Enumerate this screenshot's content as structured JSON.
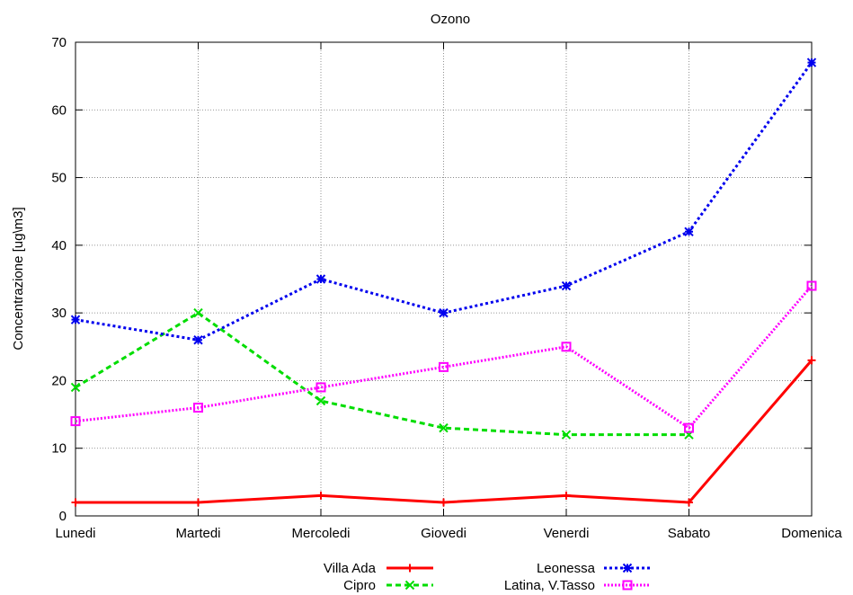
{
  "chart_data": {
    "type": "line",
    "title": "Ozono",
    "xlabel": "",
    "ylabel": "Concentrazione [ug\\m3]",
    "categories": [
      "Lunedi",
      "Martedi",
      "Mercoledi",
      "Giovedi",
      "Venerdi",
      "Sabato",
      "Domenica"
    ],
    "ylim": [
      0,
      70
    ],
    "yticks": [
      0,
      10,
      20,
      30,
      40,
      50,
      60,
      70
    ],
    "grid": true,
    "legend_position": "bottom",
    "series": [
      {
        "name": "Villa Ada",
        "values": [
          2,
          2,
          3,
          2,
          3,
          2,
          23
        ],
        "color": "#ff0000",
        "marker": "plus",
        "dash": "solid"
      },
      {
        "name": "Cipro",
        "values": [
          19,
          30,
          17,
          13,
          12,
          12,
          null
        ],
        "color": "#00dd00",
        "marker": "x",
        "dash": "dashed"
      },
      {
        "name": "Leonessa",
        "values": [
          29,
          26,
          35,
          30,
          34,
          42,
          67
        ],
        "color": "#0000ee",
        "marker": "star",
        "dash": "dotted"
      },
      {
        "name": "Latina, V.Tasso",
        "values": [
          14,
          16,
          19,
          22,
          25,
          13,
          34
        ],
        "color": "#ff00ff",
        "marker": "square",
        "dash": "dense-dotted"
      }
    ]
  }
}
